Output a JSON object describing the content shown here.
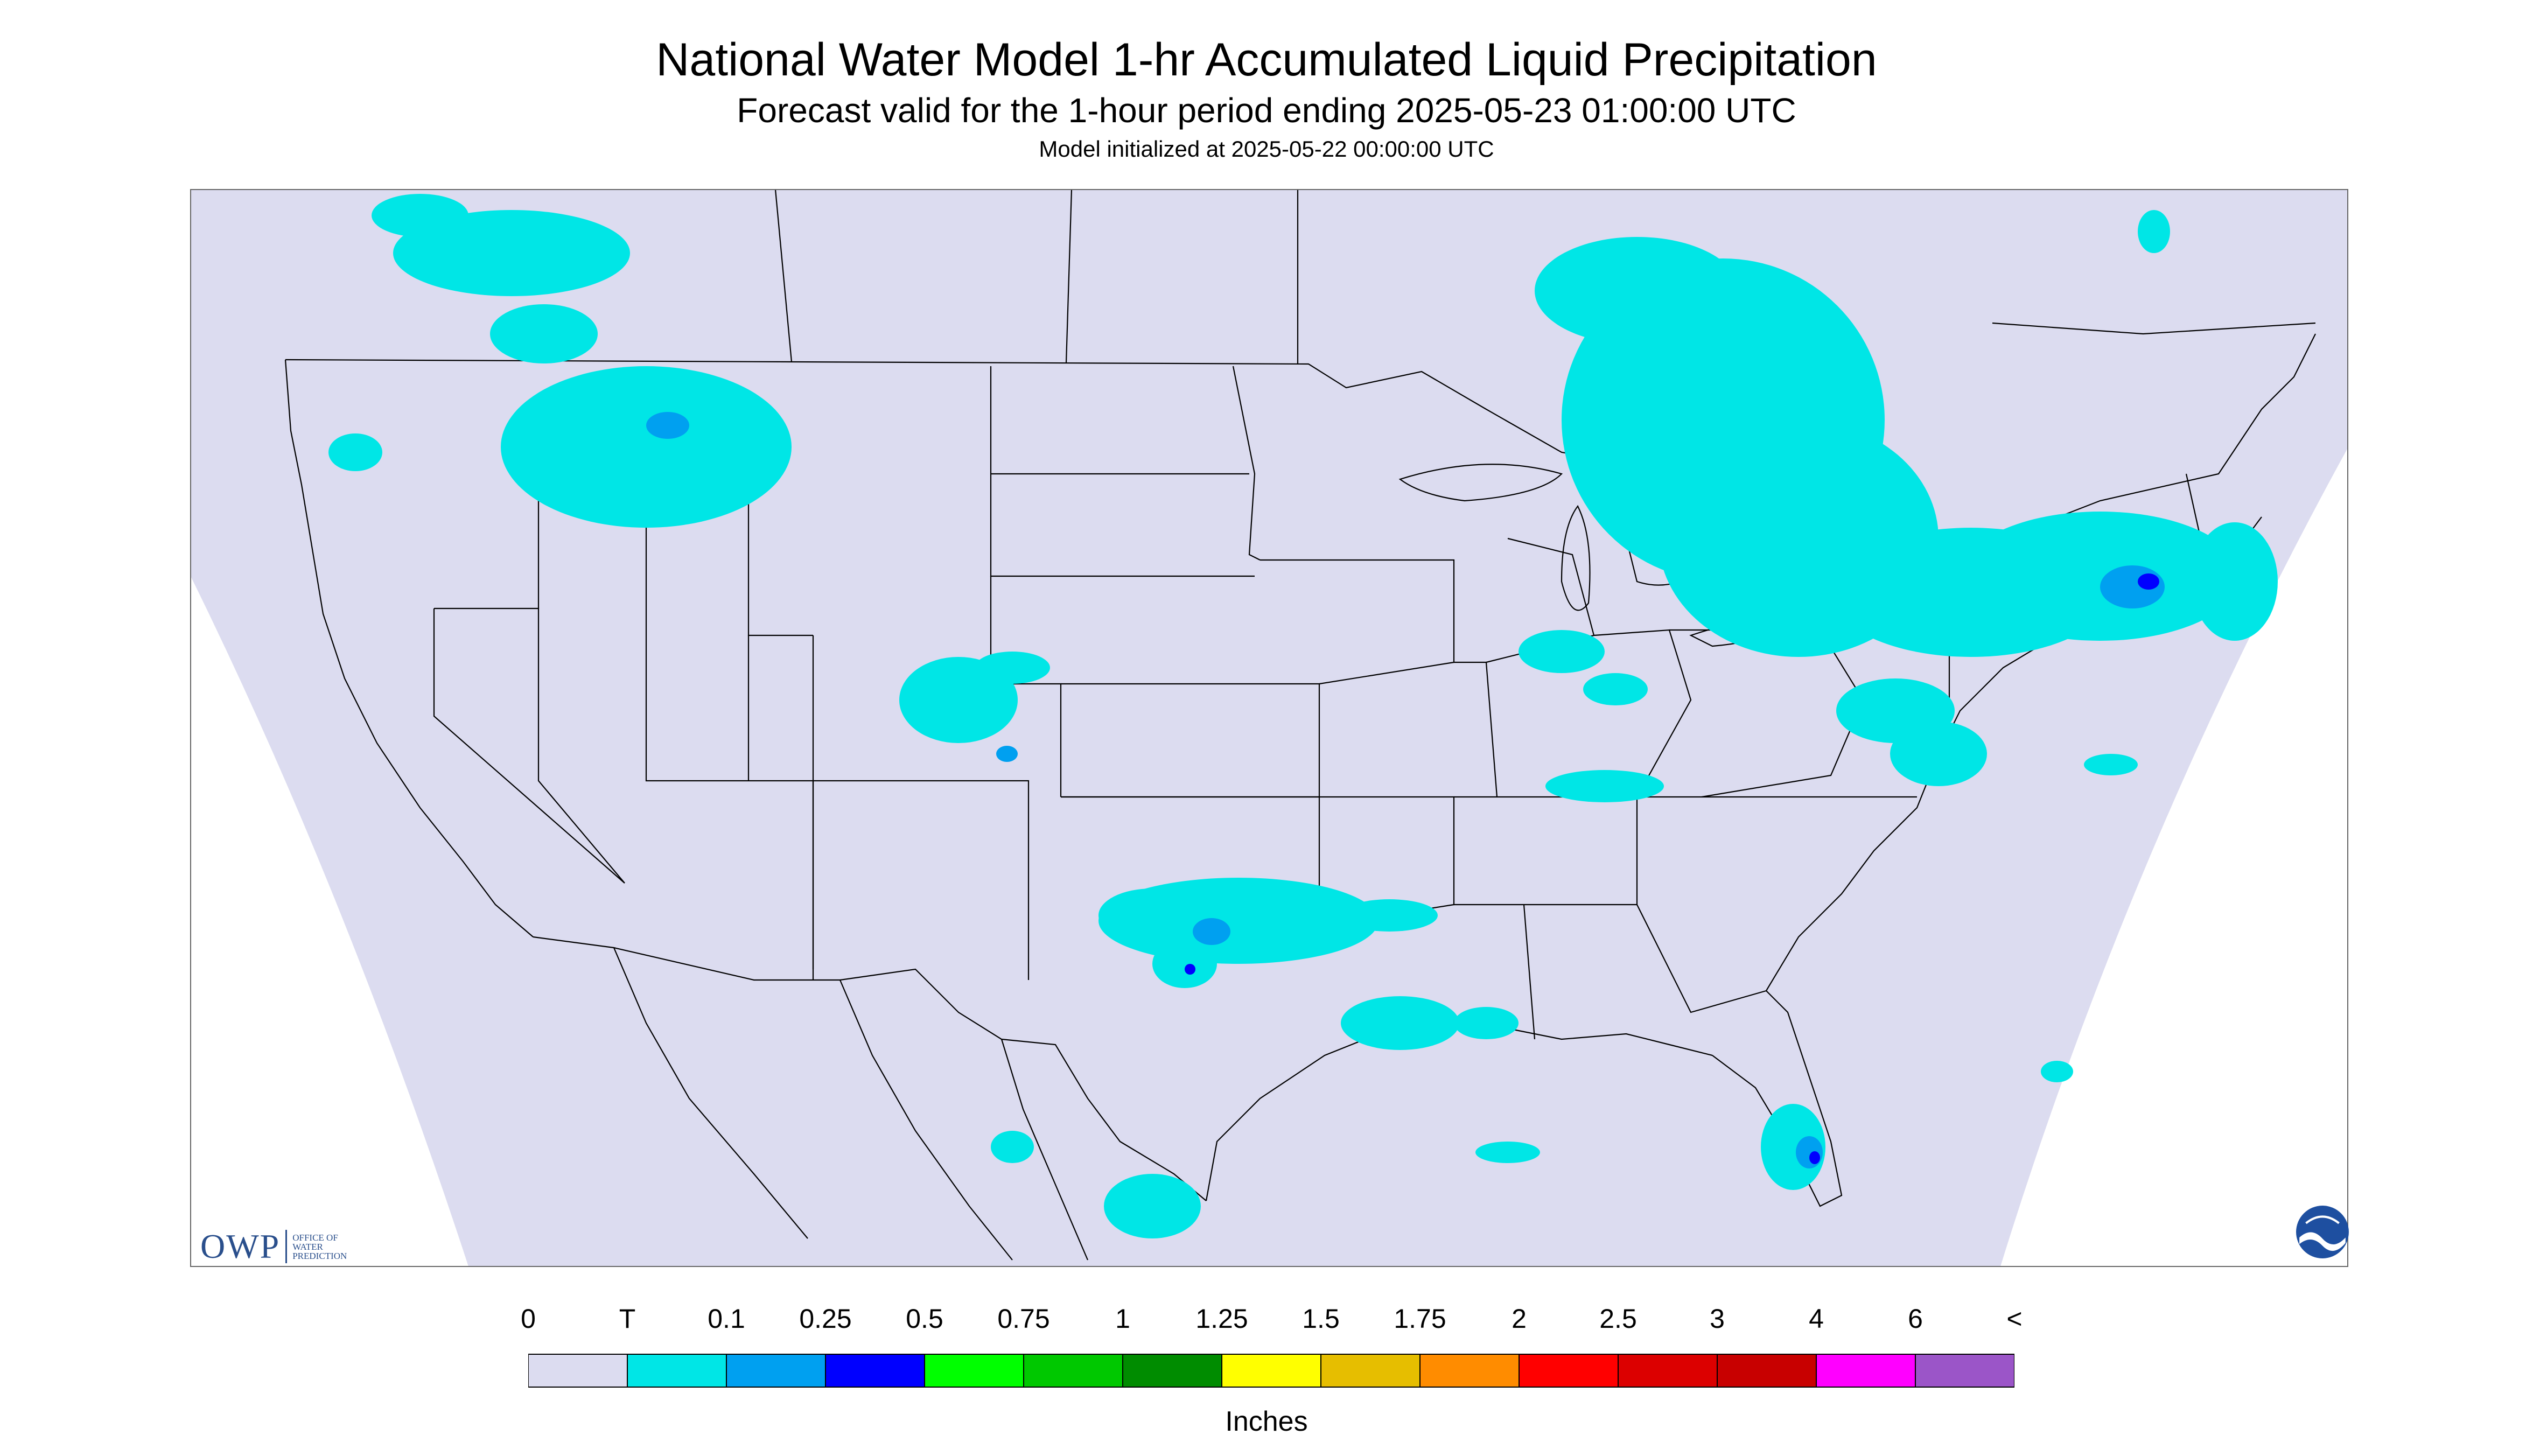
{
  "header": {
    "title": "National Water Model 1-hr Accumulated Liquid Precipitation",
    "subtitle": "Forecast valid for the 1-hour period ending 2025-05-23 01:00:00 UTC",
    "init_line": "Model initialized at 2025-05-22 00:00:00 UTC"
  },
  "map": {
    "background": "#dcdcf0",
    "outside_color": "#ffffff",
    "border_color": "#000000",
    "precip_color_light": "#00e6e6",
    "precip_color_mid": "#00a0f0",
    "precip_color_heavy": "#0000ff"
  },
  "legend": {
    "labels": [
      "0",
      "T",
      "0.1",
      "0.25",
      "0.5",
      "0.75",
      "1",
      "1.25",
      "1.5",
      "1.75",
      "2",
      "2.5",
      "3",
      "4",
      "6",
      "<"
    ],
    "colors": [
      "#dcdcf0",
      "#00e6e6",
      "#00a0f0",
      "#0000ff",
      "#00ff00",
      "#00c800",
      "#008c00",
      "#ffff00",
      "#e6be00",
      "#ff8c00",
      "#ff0000",
      "#dc0000",
      "#c80000",
      "#ff00ff",
      "#9b55c8"
    ],
    "units": "Inches"
  },
  "logos": {
    "owp_mark": "OWP",
    "owp_text": "OFFICE OF\nWATER\nPREDICTION",
    "noaa_icon": "noaa-logo-icon"
  }
}
